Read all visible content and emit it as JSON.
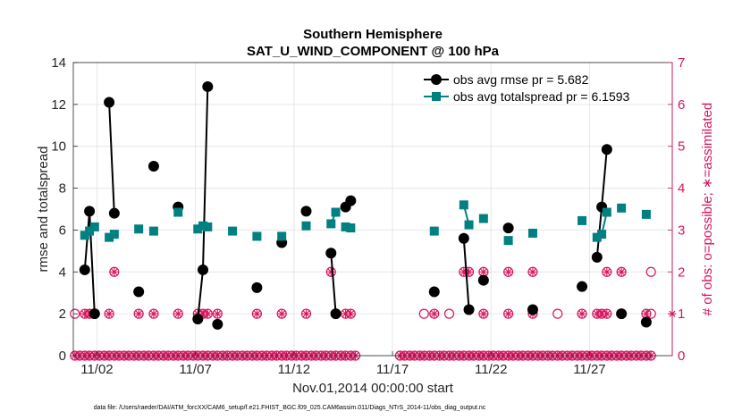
{
  "chart_data": {
    "type": "line",
    "title": "Southern Hemisphere",
    "subtitle": "SAT_U_WIND_COMPONENT @ 100 hPa",
    "xlabel": "Nov.01,2014 00:00:00 start",
    "ylabel_left": "rmse and totalspread",
    "ylabel_right": "# of obs: o=possible; ∗=assimilated",
    "ylim_left": [
      0,
      14
    ],
    "ylim_right": [
      0,
      7
    ],
    "yticks_left": [
      "0",
      "2",
      "4",
      "6",
      "8",
      "10",
      "12",
      "14"
    ],
    "yticks_right": [
      "0",
      "1",
      "2",
      "3",
      "4",
      "5",
      "6",
      "7"
    ],
    "xlim": [
      0.8,
      31.2
    ],
    "xticks": [
      {
        "day": 2,
        "label": "11/02"
      },
      {
        "day": 7,
        "label": "11/07"
      },
      {
        "day": 12,
        "label": "11/12"
      },
      {
        "day": 17,
        "label": "11/17"
      },
      {
        "day": 22,
        "label": "11/22"
      },
      {
        "day": 27,
        "label": "11/27"
      }
    ],
    "grid": true,
    "legend_position": "top-right",
    "series": [
      {
        "name": "obs avg rmse pr = 5.682",
        "color": "#000000",
        "marker": "circle",
        "axis": "left",
        "segments": [
          [
            [
              1.38,
              4.1
            ],
            [
              1.62,
              6.9
            ],
            [
              1.88,
              2.0
            ]
          ],
          [
            [
              2.62,
              12.1
            ],
            [
              2.88,
              6.8
            ]
          ],
          [
            [
              4.12,
              3.05
            ]
          ],
          [
            [
              4.88,
              9.05
            ]
          ],
          [
            [
              6.12,
              7.1
            ]
          ],
          [
            [
              7.12,
              1.75
            ],
            [
              7.38,
              4.1
            ],
            [
              7.62,
              12.85
            ]
          ],
          [
            [
              8.12,
              1.5
            ]
          ],
          [
            [
              10.12,
              3.25
            ]
          ],
          [
            [
              11.38,
              5.4
            ]
          ],
          [
            [
              12.62,
              6.9
            ]
          ],
          [
            [
              13.88,
              4.9
            ],
            [
              14.12,
              2.0
            ]
          ],
          [
            [
              14.62,
              7.1
            ],
            [
              14.88,
              7.4
            ]
          ],
          [
            [
              19.12,
              3.05
            ]
          ],
          [
            [
              20.62,
              5.6
            ],
            [
              20.88,
              2.2
            ]
          ],
          [
            [
              21.62,
              3.6
            ]
          ],
          [
            [
              22.88,
              6.1
            ]
          ],
          [
            [
              24.12,
              2.2
            ]
          ],
          [
            [
              26.62,
              3.3
            ]
          ],
          [
            [
              27.38,
              4.7
            ],
            [
              27.62,
              7.1
            ],
            [
              27.88,
              9.85
            ]
          ],
          [
            [
              28.62,
              2.0
            ]
          ],
          [
            [
              29.88,
              1.6
            ]
          ]
        ]
      },
      {
        "name": "obs avg totalspread pr = 6.1593",
        "color": "#008080",
        "marker": "square",
        "axis": "left",
        "segments": [
          [
            [
              1.38,
              5.75
            ],
            [
              1.62,
              5.95
            ],
            [
              1.88,
              6.15
            ]
          ],
          [
            [
              2.62,
              5.65
            ],
            [
              2.88,
              5.8
            ]
          ],
          [
            [
              4.12,
              6.05
            ]
          ],
          [
            [
              4.88,
              5.95
            ]
          ],
          [
            [
              6.12,
              6.85
            ]
          ],
          [
            [
              7.12,
              6.05
            ],
            [
              7.38,
              6.2
            ],
            [
              7.62,
              6.15
            ]
          ],
          [
            [
              8.88,
              5.95
            ]
          ],
          [
            [
              10.12,
              5.7
            ]
          ],
          [
            [
              11.38,
              5.7
            ]
          ],
          [
            [
              12.62,
              6.2
            ]
          ],
          [
            [
              13.88,
              6.3
            ],
            [
              14.12,
              6.85
            ]
          ],
          [
            [
              14.62,
              6.15
            ],
            [
              14.88,
              6.1
            ]
          ],
          [
            [
              19.12,
              5.95
            ]
          ],
          [
            [
              20.62,
              7.2
            ],
            [
              20.88,
              6.25
            ]
          ],
          [
            [
              21.62,
              6.55
            ]
          ],
          [
            [
              22.88,
              5.5
            ]
          ],
          [
            [
              24.12,
              5.85
            ]
          ],
          [
            [
              26.62,
              6.45
            ]
          ],
          [
            [
              27.38,
              5.65
            ],
            [
              27.62,
              5.8
            ],
            [
              27.88,
              6.85
            ]
          ],
          [
            [
              28.62,
              7.05
            ]
          ],
          [
            [
              29.88,
              6.75
            ]
          ]
        ]
      }
    ],
    "obs_counts": {
      "color": "#d6155f",
      "axis": "right",
      "possible_only_one": [
        0.88,
        18.6,
        19.88,
        25.38,
        30.12
      ],
      "possible_only_two": [
        30.12
      ],
      "possible_and_assimilated_one": [
        1.38,
        1.62,
        1.88,
        2.62,
        4.12,
        4.88,
        6.12,
        7.12,
        7.38,
        7.62,
        8.12,
        10.12,
        11.38,
        12.62,
        14.12,
        14.62,
        14.88,
        19.12,
        21.62,
        22.88,
        24.12,
        26.62,
        27.38,
        27.62,
        27.88,
        28.62,
        29.88
      ],
      "possible_and_assimilated_two": [
        2.88,
        13.88,
        20.62,
        20.88,
        21.62,
        22.88,
        24.12,
        27.88,
        28.62
      ],
      "possible_and_assimilated_zero": [
        0.88,
        1.12,
        1.38,
        1.62,
        1.88,
        2.12,
        2.38,
        2.62,
        2.88,
        3.12,
        3.38,
        3.62,
        3.88,
        4.12,
        4.38,
        4.62,
        4.88,
        5.12,
        5.38,
        5.62,
        5.88,
        6.12,
        6.38,
        6.62,
        6.88,
        7.12,
        7.38,
        7.62,
        7.88,
        8.12,
        8.38,
        8.62,
        8.88,
        9.12,
        9.38,
        9.62,
        9.88,
        10.12,
        10.38,
        10.62,
        10.88,
        11.12,
        11.38,
        11.62,
        11.88,
        12.12,
        12.38,
        12.62,
        12.88,
        13.12,
        13.38,
        13.62,
        13.88,
        14.12,
        14.38,
        14.62,
        14.88,
        15.12,
        17.38,
        17.62,
        17.88,
        18.12,
        18.38,
        18.62,
        18.88,
        19.12,
        19.38,
        19.62,
        19.88,
        20.12,
        20.38,
        20.62,
        20.88,
        21.12,
        21.38,
        21.62,
        21.88,
        22.12,
        22.38,
        22.62,
        22.88,
        23.12,
        23.38,
        23.62,
        23.88,
        24.12,
        24.38,
        24.62,
        24.88,
        25.12,
        25.38,
        25.62,
        25.88,
        26.12,
        26.38,
        26.62,
        26.88,
        27.12,
        27.38,
        27.62,
        27.88,
        28.12,
        28.38,
        28.62,
        28.88,
        29.12,
        29.38,
        29.62,
        29.88,
        30.12
      ],
      "right_edge_assimilated_one": [
        31.2
      ]
    }
  },
  "footer": "data file: /Users/raeder/DAI/ATM_forcXX/CAM6_setup/f.e21.FHIST_BGC.f09_025.CAM6assim.011/Diags_NTrS_2014-11/obs_diag_output.nc"
}
